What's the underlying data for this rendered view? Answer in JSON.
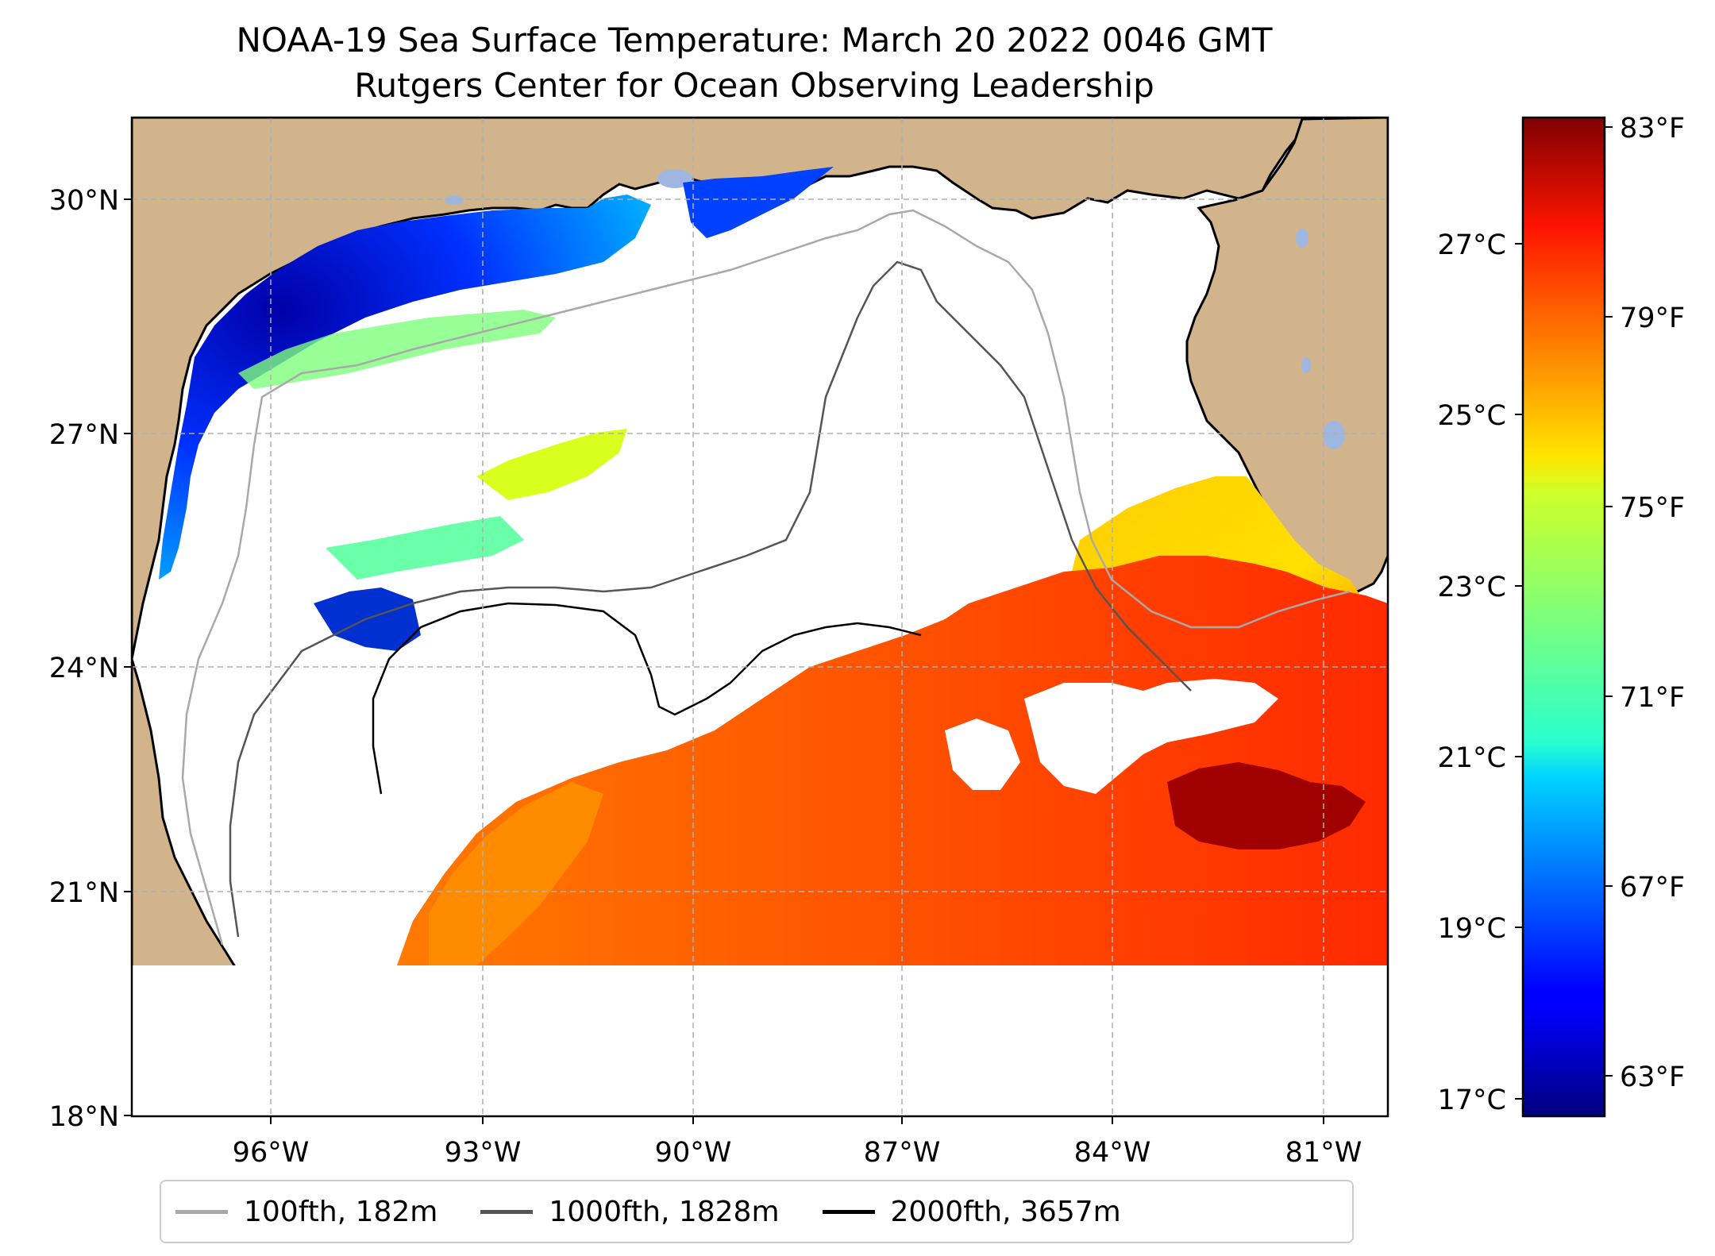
{
  "title": {
    "line1": "NOAA-19 Sea Surface Temperature: March 20 2022 0046 GMT",
    "line2": "Rutgers Center for Ocean Observing Leadership"
  },
  "map": {
    "region": "Gulf of Mexico",
    "lon_range": [
      -98.0,
      -80.2
    ],
    "lat_range": [
      18.0,
      31.0
    ],
    "lat_ticks": [
      {
        "value": 18,
        "label": "18°N"
      },
      {
        "value": 21,
        "label": "21°N"
      },
      {
        "value": 24,
        "label": "24°N"
      },
      {
        "value": 27,
        "label": "27°N"
      },
      {
        "value": 30,
        "label": "30°N"
      }
    ],
    "lon_ticks": [
      {
        "value": -96,
        "label": "96°W"
      },
      {
        "value": -93,
        "label": "93°W"
      },
      {
        "value": -90,
        "label": "90°W"
      },
      {
        "value": -87,
        "label": "87°W"
      },
      {
        "value": -84,
        "label": "84°W"
      },
      {
        "value": -81,
        "label": "81°W"
      }
    ],
    "land_color": "#d2b48c",
    "lake_color": "#9fb6e0",
    "gridline_color": "#b0b0b0"
  },
  "colorbar": {
    "colormap": "jet",
    "range_c": [
      16.7,
      28.4
    ],
    "celsius_ticks": [
      {
        "value": 17,
        "label": "17°C"
      },
      {
        "value": 19,
        "label": "19°C"
      },
      {
        "value": 21,
        "label": "21°C"
      },
      {
        "value": 23,
        "label": "23°C"
      },
      {
        "value": 25,
        "label": "25°C"
      },
      {
        "value": 27,
        "label": "27°C"
      }
    ],
    "fahrenheit_ticks": [
      {
        "value": 63,
        "label": "63°F"
      },
      {
        "value": 67,
        "label": "67°F"
      },
      {
        "value": 71,
        "label": "71°F"
      },
      {
        "value": 75,
        "label": "75°F"
      },
      {
        "value": 79,
        "label": "79°F"
      },
      {
        "value": 83,
        "label": "83°F"
      }
    ]
  },
  "legend": {
    "items": [
      {
        "label": "100fth, 182m",
        "color": "#a9a9a9"
      },
      {
        "label": "1000fth, 1828m",
        "color": "#555555"
      },
      {
        "label": "2000fth, 3657m",
        "color": "#000000"
      }
    ]
  }
}
